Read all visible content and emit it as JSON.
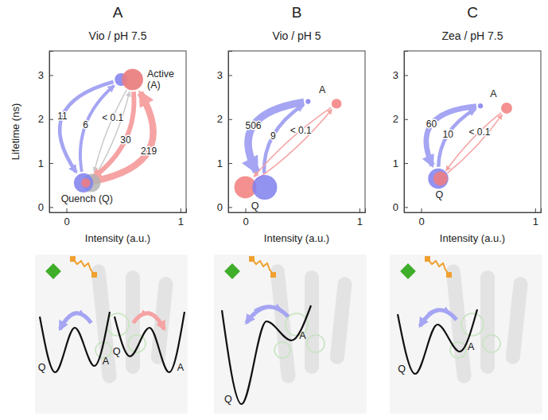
{
  "chart_data": [
    {
      "type": "scatter",
      "panel": "A",
      "title": "Vio / pH 7.5",
      "x_label": "Intensity (a.u.)",
      "y_label": "Lifetime (ns)",
      "xlim": [
        -0.15,
        1.05
      ],
      "ylim": [
        -0.12,
        3.55
      ],
      "xticks": [
        0,
        1
      ],
      "yticks": [
        0,
        1,
        2,
        3
      ],
      "states": [
        "Quench (Q)",
        "Active (A)"
      ],
      "series": [
        {
          "color": "#b4b4b4",
          "x": [
            0.22,
            0.58
          ],
          "values": [
            0.55,
            2.9
          ],
          "size": [
            0.4,
            0.5
          ]
        },
        {
          "color": "#7f7fee",
          "x": [
            0.15,
            0.48
          ],
          "values": [
            0.55,
            2.9
          ],
          "size": [
            0.45,
            0.2
          ]
        },
        {
          "color": "#f27c7c",
          "x": [
            0.17,
            0.58
          ],
          "values": [
            0.55,
            2.9
          ],
          "size": [
            0.1,
            0.55
          ]
        }
      ],
      "transitions": [
        {
          "color": "#7f7fee",
          "from": "Active (A)",
          "to": "Quench (Q)",
          "rate": 11
        },
        {
          "color": "#7f7fee",
          "from": "Quench (Q)",
          "to": "Active (A)",
          "rate": 6
        },
        {
          "color": "#b4b4b4",
          "from": "Active (A)",
          "to": "Quench (Q)",
          "rate": {
            "value": 0.1,
            "label": "< 0.1"
          }
        },
        {
          "color": "#b4b4b4",
          "from": "Quench (Q)",
          "to": "Active (A)",
          "rate": null
        },
        {
          "color": "#f27c7c",
          "from": "Active (A)",
          "to": "Quench (Q)",
          "rate": 30
        },
        {
          "color": "#f27c7c",
          "from": "Quench (Q)",
          "to": "Active (A)",
          "rate": 219
        }
      ],
      "landscapes": [
        {
          "wells": [
            "Q",
            "A"
          ]
        },
        {
          "wells": [
            "Q",
            "A"
          ]
        }
      ]
    },
    {
      "type": "scatter",
      "panel": "B",
      "title": "Vio / pH 5",
      "x_label": "Intensity (a.u.)",
      "xlim": [
        -0.15,
        1.05
      ],
      "ylim": [
        -0.12,
        3.55
      ],
      "xticks": [
        0,
        1
      ],
      "yticks": [
        0,
        1,
        2,
        3
      ],
      "states": [
        "Q",
        "A"
      ],
      "series": [
        {
          "color": "#f27c7c",
          "x": [
            0.0,
            0.8
          ],
          "values": [
            0.45,
            2.35
          ],
          "size": [
            0.6,
            0.12
          ]
        },
        {
          "color": "#7f7fee",
          "x": [
            0.17,
            0.55
          ],
          "values": [
            0.45,
            2.4
          ],
          "size": [
            0.75,
            0.03
          ]
        }
      ],
      "transitions": [
        {
          "color": "#7f7fee",
          "from": "A",
          "to": "Q",
          "rate": 506
        },
        {
          "color": "#7f7fee",
          "from": "Q",
          "to": "A",
          "rate": 9
        },
        {
          "color": "#f27c7c",
          "from": "A",
          "to": "Q",
          "rate": {
            "value": 0.1,
            "label": "< 0.1"
          }
        },
        {
          "color": "#f27c7c",
          "from": "Q",
          "to": "A",
          "rate": null
        }
      ],
      "landscapes": [
        {
          "wells": [
            "Q",
            "A"
          ]
        }
      ]
    },
    {
      "type": "scatter",
      "panel": "C",
      "title": "Zea / pH 7.5",
      "x_label": "Intensity (a.u.)",
      "xlim": [
        -0.15,
        1.05
      ],
      "ylim": [
        -0.12,
        3.55
      ],
      "xticks": [
        0,
        1
      ],
      "yticks": [
        0,
        1,
        2,
        3
      ],
      "states": [
        "Q",
        "A"
      ],
      "series": [
        {
          "color": "#7f7fee",
          "x": [
            0.15,
            0.52
          ],
          "values": [
            0.65,
            2.3
          ],
          "size": [
            0.5,
            0.03
          ]
        },
        {
          "color": "#f27c7c",
          "x": [
            0.17,
            0.75
          ],
          "values": [
            0.65,
            2.25
          ],
          "size": [
            0.25,
            0.15
          ]
        }
      ],
      "transitions": [
        {
          "color": "#7f7fee",
          "from": "A",
          "to": "Q",
          "rate": 60
        },
        {
          "color": "#7f7fee",
          "from": "Q",
          "to": "A",
          "rate": 10
        },
        {
          "color": "#f27c7c",
          "from": "A",
          "to": "Q",
          "rate": {
            "value": 0.1,
            "label": "< 0.1"
          }
        },
        {
          "color": "#f27c7c",
          "from": "Q",
          "to": "A",
          "rate": null
        }
      ],
      "landscapes": [
        {
          "wells": [
            "Q",
            "A"
          ]
        }
      ]
    }
  ]
}
